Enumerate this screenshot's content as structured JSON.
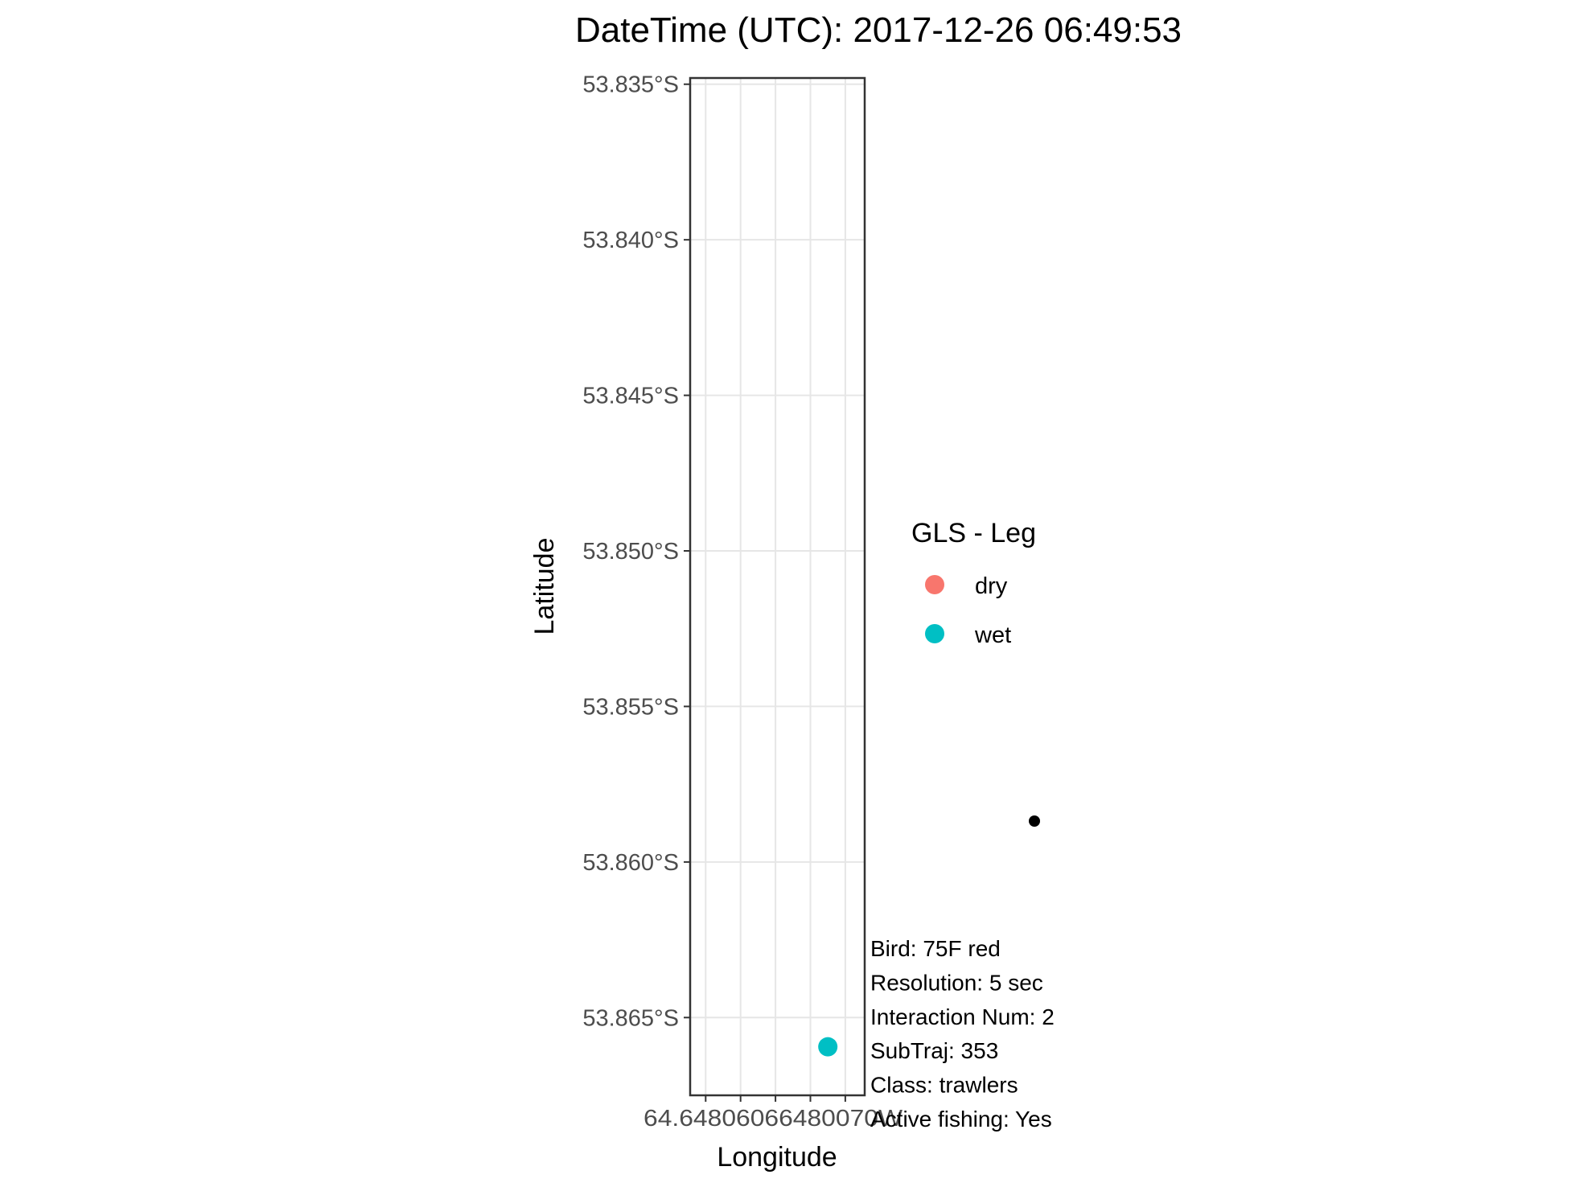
{
  "chart_data": {
    "type": "scatter",
    "title": "DateTime (UTC): 2017-12-26 06:49:53",
    "xlabel": "Longitude",
    "ylabel": "Latitude",
    "ylim": [
      53.8675,
      53.8348
    ],
    "y_ticks": [
      {
        "value": 53.835,
        "label": "53.835°S"
      },
      {
        "value": 53.84,
        "label": "53.840°S"
      },
      {
        "value": 53.845,
        "label": "53.845°S"
      },
      {
        "value": 53.85,
        "label": "53.850°S"
      },
      {
        "value": 53.855,
        "label": "53.855°S"
      },
      {
        "value": 53.86,
        "label": "53.860°S"
      },
      {
        "value": 53.865,
        "label": "53.865°S"
      }
    ],
    "xlim": [
      64.0,
      64.0045
    ],
    "x_ticks": [
      {
        "value": 64.0004,
        "label": "64.0"
      },
      {
        "value": 64.0013,
        "label": "64.00"
      },
      {
        "value": 64.0022,
        "label": "64.00"
      },
      {
        "value": 64.0031,
        "label": "64.00"
      },
      {
        "value": 64.004,
        "label": "64.00"
      }
    ],
    "x_tick_labels_overlapping": "64.64806066480070W",
    "grid": true,
    "series": [
      {
        "name": "dry",
        "color": "#F8766D",
        "points": []
      },
      {
        "name": "wet",
        "color": "#00BFC4",
        "points": [
          {
            "x": 64.00355,
            "y": 53.86594
          }
        ]
      }
    ],
    "legend": {
      "title": "GLS - Leg",
      "position": "right"
    },
    "annotations": [
      "Bird: 75F red",
      "Resolution: 5 sec",
      "Interaction Num: 2",
      "SubTraj: 353",
      "Class: trawlers",
      "Active fishing: Yes"
    ]
  }
}
